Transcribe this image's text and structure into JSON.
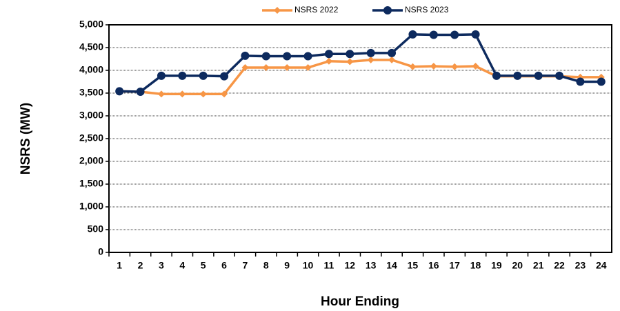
{
  "chart_data": {
    "type": "line",
    "x_label": "Hour Ending",
    "y_label": "NSRS (MW)",
    "categories": [
      "1",
      "2",
      "3",
      "4",
      "5",
      "6",
      "7",
      "8",
      "9",
      "10",
      "11",
      "12",
      "13",
      "14",
      "15",
      "16",
      "17",
      "18",
      "19",
      "20",
      "21",
      "22",
      "23",
      "24"
    ],
    "series": [
      {
        "name": "NSRS 2022",
        "color": "#f79646",
        "marker": "diamond",
        "values": [
          3540,
          3530,
          3480,
          3480,
          3480,
          3480,
          4060,
          4060,
          4060,
          4060,
          4200,
          4190,
          4230,
          4230,
          4080,
          4090,
          4080,
          4090,
          3870,
          3870,
          3870,
          3870,
          3850,
          3850
        ]
      },
      {
        "name": "NSRS 2023",
        "color": "#0d2a5e",
        "marker": "circle",
        "values": [
          3540,
          3530,
          3880,
          3880,
          3880,
          3870,
          4320,
          4310,
          4310,
          4310,
          4360,
          4360,
          4380,
          4380,
          4790,
          4780,
          4780,
          4790,
          3880,
          3880,
          3880,
          3880,
          3750,
          3750
        ]
      }
    ],
    "ylim": [
      0,
      5000
    ],
    "yticks": [
      0,
      500,
      {
        "value": 1000,
        "label": "1,000"
      },
      {
        "value": 1500,
        "label": "1,500"
      },
      {
        "value": 2000,
        "label": "2,000"
      },
      {
        "value": 2500,
        "label": "2,500"
      },
      {
        "value": 3000,
        "label": "3,000"
      },
      {
        "value": 3500,
        "label": "3,500"
      },
      {
        "value": 4000,
        "label": "4,000"
      },
      {
        "value": 4500,
        "label": "4,500"
      },
      {
        "value": 5000,
        "label": "5,000"
      }
    ],
    "grid": true,
    "legend": "top"
  }
}
